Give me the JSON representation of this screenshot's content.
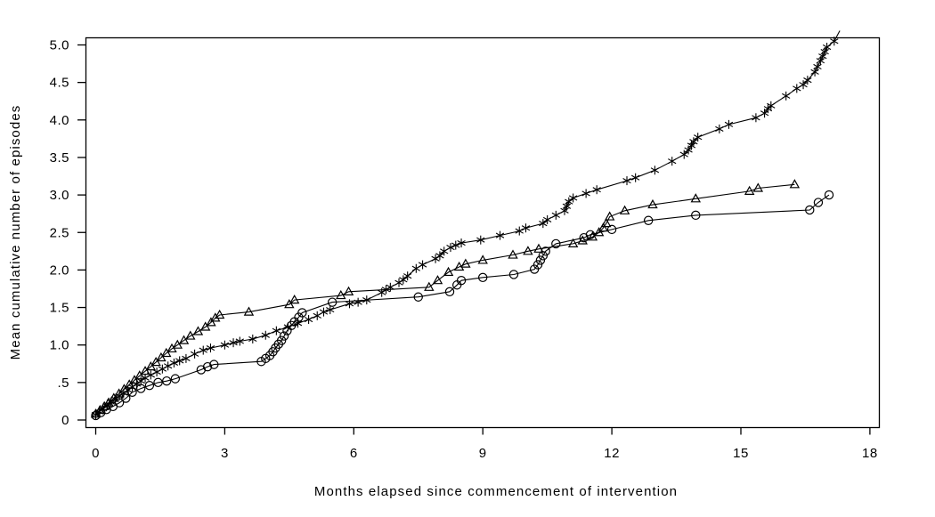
{
  "figure": {
    "background": "#ffffff",
    "axis_color": "#000000",
    "text_color": "#000000",
    "series_color": "#000000"
  },
  "chart_data": {
    "type": "line",
    "title": "",
    "xlabel": "Months elapsed since commencement of intervention",
    "ylabel": "Mean cumulative number of episodes",
    "xlim": [
      -0.23,
      18.2
    ],
    "ylim": [
      -0.1,
      5.2
    ],
    "grid": false,
    "legend": "none",
    "x_ticks": {
      "values": [
        0,
        3,
        6,
        9,
        12,
        15,
        18
      ],
      "labels": [
        "0",
        "3",
        "6",
        "9",
        "12",
        "15",
        "18"
      ]
    },
    "y_ticks": {
      "values": [
        0,
        0.5,
        1,
        1.5,
        2,
        2.5,
        3,
        3.5,
        4,
        4.5,
        5
      ],
      "labels": [
        "0",
        ".5",
        "1.0",
        "1.5",
        "2.0",
        "2.5",
        "3.0",
        "3.5",
        "4.0",
        "4.5",
        "5.0"
      ]
    },
    "series": [
      {
        "name": "circle-series",
        "marker": "circle",
        "color": "#000000",
        "points": [
          [
            0,
            0.06
          ],
          [
            0.12,
            0.1
          ],
          [
            0.25,
            0.14
          ],
          [
            0.4,
            0.18
          ],
          [
            0.55,
            0.23
          ],
          [
            0.7,
            0.29
          ],
          [
            0.85,
            0.37
          ],
          [
            1.05,
            0.42
          ],
          [
            1.25,
            0.46
          ],
          [
            1.45,
            0.5
          ],
          [
            1.65,
            0.52
          ],
          [
            1.85,
            0.55
          ],
          [
            2.45,
            0.67
          ],
          [
            2.6,
            0.71
          ],
          [
            2.75,
            0.74
          ],
          [
            3.85,
            0.78
          ],
          [
            3.95,
            0.82
          ],
          [
            4.05,
            0.86
          ],
          [
            4.12,
            0.91
          ],
          [
            4.18,
            0.96
          ],
          [
            4.25,
            1.01
          ],
          [
            4.32,
            1.06
          ],
          [
            4.38,
            1.12
          ],
          [
            4.45,
            1.19
          ],
          [
            4.55,
            1.26
          ],
          [
            4.62,
            1.31
          ],
          [
            4.72,
            1.37
          ],
          [
            4.8,
            1.43
          ],
          [
            5.5,
            1.57
          ],
          [
            7.5,
            1.64
          ],
          [
            8.23,
            1.71
          ],
          [
            8.4,
            1.8
          ],
          [
            8.5,
            1.86
          ],
          [
            9,
            1.9
          ],
          [
            9.72,
            1.94
          ],
          [
            10.2,
            2.01
          ],
          [
            10.28,
            2.07
          ],
          [
            10.34,
            2.13
          ],
          [
            10.4,
            2.19
          ],
          [
            10.46,
            2.25
          ],
          [
            10.7,
            2.35
          ],
          [
            11.35,
            2.43
          ],
          [
            11.5,
            2.47
          ],
          [
            12,
            2.54
          ],
          [
            12.85,
            2.66
          ],
          [
            13.95,
            2.73
          ],
          [
            16.6,
            2.8
          ],
          [
            16.8,
            2.9
          ],
          [
            17.05,
            3.0
          ]
        ]
      },
      {
        "name": "triangle-series",
        "marker": "triangle",
        "color": "#000000",
        "points": [
          [
            0,
            0.08
          ],
          [
            0.1,
            0.13
          ],
          [
            0.2,
            0.18
          ],
          [
            0.3,
            0.23
          ],
          [
            0.42,
            0.29
          ],
          [
            0.54,
            0.35
          ],
          [
            0.66,
            0.41
          ],
          [
            0.78,
            0.47
          ],
          [
            0.9,
            0.53
          ],
          [
            1.02,
            0.59
          ],
          [
            1.15,
            0.65
          ],
          [
            1.28,
            0.71
          ],
          [
            1.4,
            0.77
          ],
          [
            1.52,
            0.83
          ],
          [
            1.64,
            0.89
          ],
          [
            1.77,
            0.95
          ],
          [
            1.9,
            1.0
          ],
          [
            2.05,
            1.06
          ],
          [
            2.2,
            1.12
          ],
          [
            2.38,
            1.18
          ],
          [
            2.55,
            1.24
          ],
          [
            2.68,
            1.3
          ],
          [
            2.78,
            1.36
          ],
          [
            2.88,
            1.4
          ],
          [
            3.56,
            1.44
          ],
          [
            4.5,
            1.54
          ],
          [
            4.62,
            1.6
          ],
          [
            5.7,
            1.66
          ],
          [
            5.88,
            1.71
          ],
          [
            7.75,
            1.77
          ],
          [
            7.95,
            1.86
          ],
          [
            8.2,
            1.97
          ],
          [
            8.45,
            2.04
          ],
          [
            8.6,
            2.08
          ],
          [
            9,
            2.13
          ],
          [
            9.7,
            2.2
          ],
          [
            10.05,
            2.25
          ],
          [
            10.3,
            2.28
          ],
          [
            11.1,
            2.35
          ],
          [
            11.32,
            2.39
          ],
          [
            11.55,
            2.44
          ],
          [
            11.7,
            2.5
          ],
          [
            11.8,
            2.56
          ],
          [
            11.87,
            2.62
          ],
          [
            11.95,
            2.71
          ],
          [
            12.3,
            2.79
          ],
          [
            12.95,
            2.87
          ],
          [
            13.95,
            2.95
          ],
          [
            15.2,
            3.05
          ],
          [
            15.4,
            3.09
          ],
          [
            16.25,
            3.14
          ]
        ]
      },
      {
        "name": "asterisk-series",
        "marker": "asterisk",
        "color": "#000000",
        "points": [
          [
            0,
            0.07
          ],
          [
            0.08,
            0.11
          ],
          [
            0.17,
            0.15
          ],
          [
            0.26,
            0.19
          ],
          [
            0.35,
            0.24
          ],
          [
            0.45,
            0.28
          ],
          [
            0.55,
            0.32
          ],
          [
            0.65,
            0.36
          ],
          [
            0.75,
            0.4
          ],
          [
            0.85,
            0.44
          ],
          [
            0.95,
            0.48
          ],
          [
            1.05,
            0.52
          ],
          [
            1.15,
            0.56
          ],
          [
            1.28,
            0.6
          ],
          [
            1.42,
            0.64
          ],
          [
            1.55,
            0.68
          ],
          [
            1.68,
            0.72
          ],
          [
            1.82,
            0.76
          ],
          [
            1.95,
            0.79
          ],
          [
            2.1,
            0.82
          ],
          [
            2.3,
            0.88
          ],
          [
            2.5,
            0.93
          ],
          [
            2.67,
            0.96
          ],
          [
            3.0,
            1.0
          ],
          [
            3.2,
            1.03
          ],
          [
            3.35,
            1.05
          ],
          [
            3.65,
            1.08
          ],
          [
            3.95,
            1.13
          ],
          [
            4.2,
            1.19
          ],
          [
            4.47,
            1.24
          ],
          [
            4.7,
            1.29
          ],
          [
            4.95,
            1.34
          ],
          [
            5.15,
            1.39
          ],
          [
            5.3,
            1.44
          ],
          [
            5.45,
            1.47
          ],
          [
            5.9,
            1.55
          ],
          [
            6.1,
            1.57
          ],
          [
            6.3,
            1.6
          ],
          [
            6.65,
            1.7
          ],
          [
            6.75,
            1.74
          ],
          [
            6.85,
            1.77
          ],
          [
            7.05,
            1.83
          ],
          [
            7.15,
            1.87
          ],
          [
            7.25,
            1.92
          ],
          [
            7.45,
            2.02
          ],
          [
            7.6,
            2.07
          ],
          [
            7.9,
            2.15
          ],
          [
            8.0,
            2.19
          ],
          [
            8.1,
            2.25
          ],
          [
            8.25,
            2.3
          ],
          [
            8.37,
            2.33
          ],
          [
            8.5,
            2.36
          ],
          [
            8.95,
            2.4
          ],
          [
            9.4,
            2.46
          ],
          [
            9.85,
            2.52
          ],
          [
            10.0,
            2.56
          ],
          [
            10.4,
            2.62
          ],
          [
            10.5,
            2.67
          ],
          [
            10.7,
            2.73
          ],
          [
            10.9,
            2.79
          ],
          [
            10.95,
            2.85
          ],
          [
            11.0,
            2.91
          ],
          [
            11.1,
            2.96
          ],
          [
            11.4,
            3.02
          ],
          [
            11.65,
            3.07
          ],
          [
            12.35,
            3.19
          ],
          [
            12.55,
            3.23
          ],
          [
            13.0,
            3.33
          ],
          [
            13.4,
            3.45
          ],
          [
            13.68,
            3.54
          ],
          [
            13.78,
            3.6
          ],
          [
            13.85,
            3.66
          ],
          [
            13.9,
            3.71
          ],
          [
            14.0,
            3.77
          ],
          [
            14.5,
            3.88
          ],
          [
            14.72,
            3.94
          ],
          [
            15.35,
            4.03
          ],
          [
            15.55,
            4.09
          ],
          [
            15.63,
            4.15
          ],
          [
            15.7,
            4.19
          ],
          [
            16.05,
            4.32
          ],
          [
            16.3,
            4.42
          ],
          [
            16.45,
            4.47
          ],
          [
            16.55,
            4.53
          ],
          [
            16.72,
            4.64
          ],
          [
            16.78,
            4.71
          ],
          [
            16.85,
            4.79
          ],
          [
            16.9,
            4.85
          ],
          [
            16.95,
            4.91
          ],
          [
            17.0,
            4.97
          ],
          [
            17.17,
            5.05
          ]
        ],
        "line_tail": [
          17.3,
          5.19
        ]
      }
    ]
  }
}
